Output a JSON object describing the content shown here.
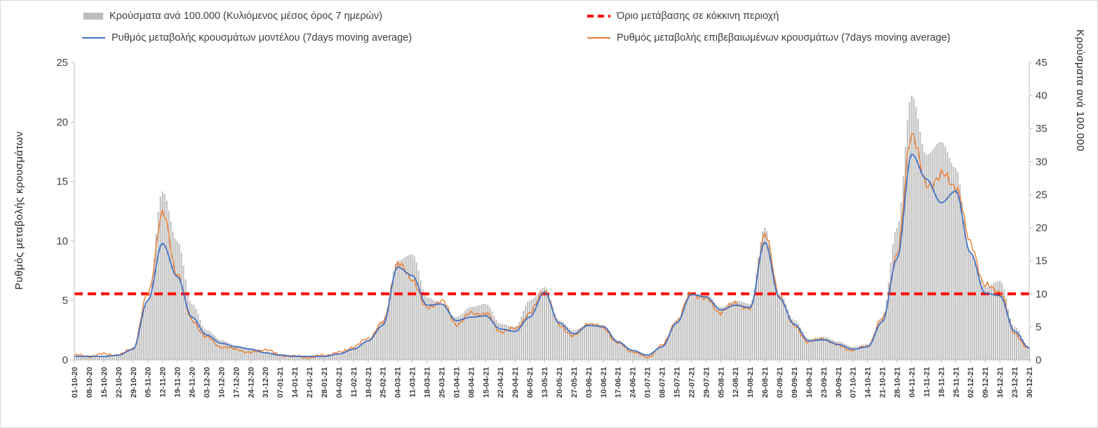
{
  "figure": {
    "left_axis_title": "Ρυθμός μεταβολής κρουσμάτων",
    "right_axis_title": "Κρούσματα ανά 100.000"
  },
  "legend": {
    "bars_label": "Κρούσματα ανά 100.000 (Κυλιόμενος μέσος όρος 7 ημερών)",
    "threshold_label": "Όριο μετάβασης σε κόκκινη περιοχή",
    "model_label": "Ρυθμός μεταβολής κρουσμάτων μοντέλου (7days moving average)",
    "confirmed_label": "Ρυθμός μεταβολής επιβεβαιωμένων κρουσμάτων (7days moving average)"
  },
  "colors": {
    "bars": "#bdbdbd",
    "model_line": "#4472c4",
    "confirmed_line": "#ed7d31",
    "threshold": "#ff0000",
    "axis": "#bfbfbf",
    "text": "#404040"
  },
  "chart_data": {
    "type": "bar",
    "subtype": "combo-bar-line",
    "grid": false,
    "legend_position": "top",
    "x_labels": [
      "01-10-20",
      "08-10-20",
      "15-10-20",
      "22-10-20",
      "29-10-20",
      "05-11-20",
      "12-11-20",
      "19-11-20",
      "26-11-20",
      "03-12-20",
      "10-12-20",
      "17-12-20",
      "24-12-20",
      "31-12-20",
      "07-01-21",
      "14-01-21",
      "21-01-21",
      "28-01-21",
      "04-02-21",
      "11-02-21",
      "18-02-21",
      "25-02-21",
      "04-03-21",
      "11-03-21",
      "18-03-21",
      "25-03-21",
      "01-04-21",
      "08-04-21",
      "15-04-21",
      "22-04-21",
      "29-04-21",
      "06-05-21",
      "13-05-21",
      "20-05-21",
      "27-05-21",
      "03-06-21",
      "10-06-21",
      "17-06-21",
      "24-06-21",
      "01-07-21",
      "08-07-21",
      "15-07-21",
      "22-07-21",
      "29-07-21",
      "05-08-21",
      "12-08-21",
      "19-08-21",
      "26-08-21",
      "02-09-21",
      "09-09-21",
      "16-09-21",
      "23-09-21",
      "30-09-21",
      "07-10-21",
      "14-10-21",
      "21-10-21",
      "28-10-21",
      "04-11-21",
      "11-11-21",
      "18-11-21",
      "25-11-21",
      "02-12-21",
      "09-12-21",
      "16-12-21",
      "23-12-21",
      "30-12-21"
    ],
    "left_axis": {
      "min": 0,
      "max": 25,
      "step": 5
    },
    "right_axis": {
      "min": 0,
      "max": 45,
      "step": 5
    },
    "threshold": {
      "axis": "right",
      "value": 10
    },
    "series": [
      {
        "name": "Κρούσματα ανά 100.000 (Κυλιόμενος μέσος όρος 7 ημερών)",
        "type": "bar",
        "axis": "right",
        "values": [
          0.5,
          0.5,
          0.6,
          0.8,
          1.6,
          9,
          25.5,
          18,
          8.5,
          4.5,
          3,
          2.2,
          1.8,
          1.2,
          0.9,
          0.7,
          0.5,
          0.6,
          1,
          1.8,
          3,
          6,
          15,
          16,
          9.5,
          8.5,
          6.5,
          8,
          8.5,
          5.5,
          5,
          9,
          11,
          6,
          4.5,
          5.5,
          5.3,
          3,
          1.5,
          0.8,
          2,
          6,
          10,
          10,
          8,
          9,
          8.5,
          20,
          10,
          6,
          3.2,
          3.5,
          2.8,
          2,
          2.4,
          6.5,
          20,
          40,
          31,
          33,
          29,
          16,
          11,
          12,
          5,
          2
        ]
      },
      {
        "name": "Ρυθμός μεταβολής κρουσμάτων μοντέλου (7days moving average)",
        "type": "line",
        "axis": "left",
        "values": [
          0.3,
          0.3,
          0.3,
          0.4,
          0.9,
          5,
          9.8,
          7,
          3.6,
          2.1,
          1.4,
          1.1,
          0.9,
          0.6,
          0.4,
          0.3,
          0.3,
          0.3,
          0.5,
          0.9,
          1.6,
          2.9,
          7.8,
          7.1,
          4.6,
          4.7,
          3.3,
          3.6,
          3.7,
          2.6,
          2.4,
          3.6,
          5.7,
          3.1,
          2.2,
          2.9,
          2.8,
          1.5,
          0.8,
          0.4,
          1.1,
          3.1,
          5.5,
          5.3,
          4.2,
          4.6,
          4.4,
          9.9,
          5.2,
          3,
          1.6,
          1.7,
          1.3,
          0.9,
          1.1,
          3.2,
          8.5,
          17.3,
          15.2,
          13.2,
          14.2,
          9,
          5.6,
          5.4,
          2.4,
          1
        ]
      },
      {
        "name": "Ρυθμός μεταβολής επιβεβαιωμένων κρουσμάτων (7days moving average)",
        "type": "line",
        "axis": "left",
        "values": [
          0.4,
          0.3,
          0.5,
          0.4,
          1,
          5.5,
          12.3,
          7.3,
          3.3,
          1.9,
          1.1,
          0.9,
          0.6,
          0.9,
          0.4,
          0.3,
          0.2,
          0.4,
          0.6,
          1.1,
          1.8,
          3.1,
          8.1,
          6.8,
          4.3,
          5,
          3,
          3.9,
          3.9,
          2.4,
          2.6,
          3.9,
          5.9,
          2.9,
          2,
          3.1,
          2.7,
          1.4,
          0.7,
          0.2,
          1.2,
          3.3,
          5.6,
          5.1,
          4,
          4.8,
          4.2,
          10.6,
          5.4,
          2.8,
          1.5,
          1.8,
          1.2,
          0.8,
          1.2,
          3.4,
          8.8,
          19.2,
          14.6,
          15.5,
          14.7,
          9.8,
          6.2,
          5.8,
          2.2,
          0.9
        ]
      }
    ]
  }
}
